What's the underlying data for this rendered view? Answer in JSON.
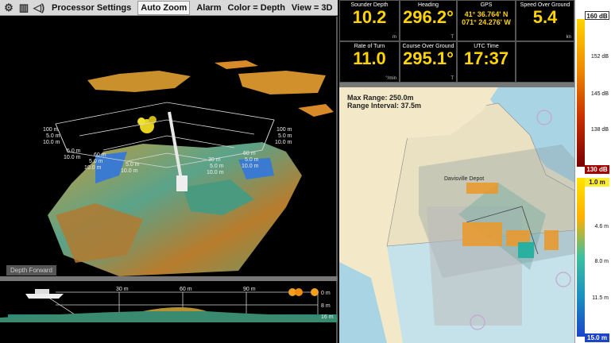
{
  "toolbar": {
    "gear_icon": "gear-icon",
    "grid_icon": "grid-icon",
    "sound_icon": "sound-icon",
    "items": [
      "Processor Settings",
      "Auto Zoom",
      "Alarm",
      "Color = Depth",
      "View = 3D"
    ]
  },
  "view3d": {
    "depth_button": "Depth Forward",
    "left_labels": [
      "100 m",
      "5.0 m",
      "10.0 m",
      "5.0 m",
      "10.0 m",
      "60 m",
      "5.0 m",
      "10.0 m",
      "5.0 m",
      "10.0 m"
    ],
    "right_labels": [
      "100 m",
      "5.0 m",
      "10.0 m",
      "60 m",
      "5.0 m",
      "10.0 m",
      "30 m",
      "5.0 m",
      "10.0 m"
    ]
  },
  "profile": {
    "x_ticks": [
      "30 m",
      "60 m",
      "90 m"
    ],
    "y_ticks": [
      "0 m",
      "8 m",
      "16 m"
    ]
  },
  "dashboard": {
    "sounder_depth": {
      "label": "Sounder Depth",
      "value": "10.2",
      "unit": "m"
    },
    "heading": {
      "label": "Heading",
      "value": "296.2°",
      "unit": "T"
    },
    "gps": {
      "label": "GPS",
      "lat": "41° 36.764' N",
      "lon": "071° 24.276' W"
    },
    "sog": {
      "label": "Speed Over Ground",
      "value": "5.4",
      "unit": "kn"
    },
    "rot": {
      "label": "Rate of Turn",
      "value": "11.0",
      "unit": "°/min"
    },
    "cog": {
      "label": "Course Over Ground",
      "value": "295.1°",
      "unit": "T"
    },
    "utc": {
      "label": "UTC Time",
      "value": "17:37"
    }
  },
  "chart": {
    "max_range": "Max Range: 250.0m",
    "range_interval": "Range Interval: 37.5m",
    "depot_label": "Davisville Depot"
  },
  "scale": {
    "db_top": "160 dB",
    "db_labels": [
      "152 dB",
      "145 dB",
      "138 dB"
    ],
    "db_bottom": "130 dB",
    "depth_top": "1.0 m",
    "depth_labels": [
      "4.6 m",
      "8.0 m",
      "11.5 m"
    ],
    "depth_bottom": "15.0 m"
  },
  "colors": {
    "readout": "#ffd400",
    "accent_red": "#a30000",
    "accent_blue": "#1b44c8"
  }
}
